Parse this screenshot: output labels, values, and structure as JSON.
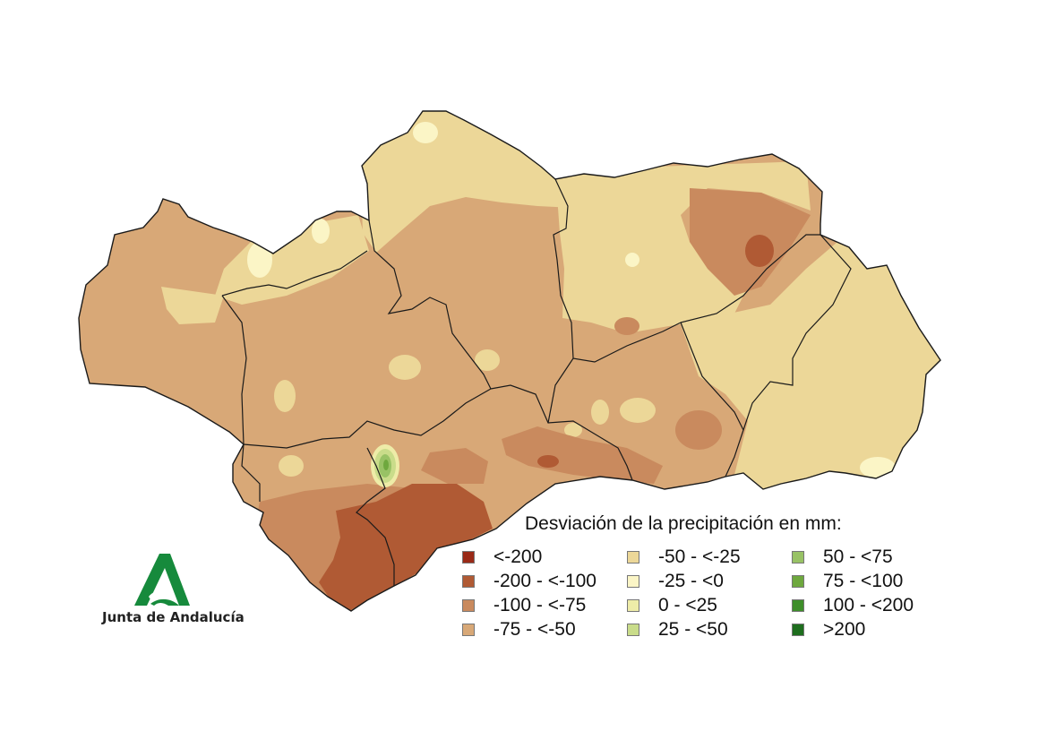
{
  "legend": {
    "title": "Desviación de la precipitación en mm:",
    "items": [
      {
        "label": "<-200",
        "color": "#9a2a17"
      },
      {
        "label": "-200 - <-100",
        "color": "#b05a34"
      },
      {
        "label": "-100 - <-75",
        "color": "#c98a5e"
      },
      {
        "label": "-75 - <-50",
        "color": "#d8a877"
      },
      {
        "label": "-50 - <-25",
        "color": "#ecd798"
      },
      {
        "label": "-25 - <0",
        "color": "#fbf5c6"
      },
      {
        "label": "0 - <25",
        "color": "#eeeca8"
      },
      {
        "label": "25 - <50",
        "color": "#c9dc8a"
      },
      {
        "label": "50 - <75",
        "color": "#98c265"
      },
      {
        "label": "75 - <100",
        "color": "#6ea83e"
      },
      {
        "label": "100 - <200",
        "color": "#3e8e2a"
      },
      {
        "label": ">200",
        "color": "#1e6e1e"
      }
    ]
  },
  "logo": {
    "text": "Junta de Andalucía",
    "color": "#168a3c",
    "icon": "andalucia-a-logo-icon"
  }
}
